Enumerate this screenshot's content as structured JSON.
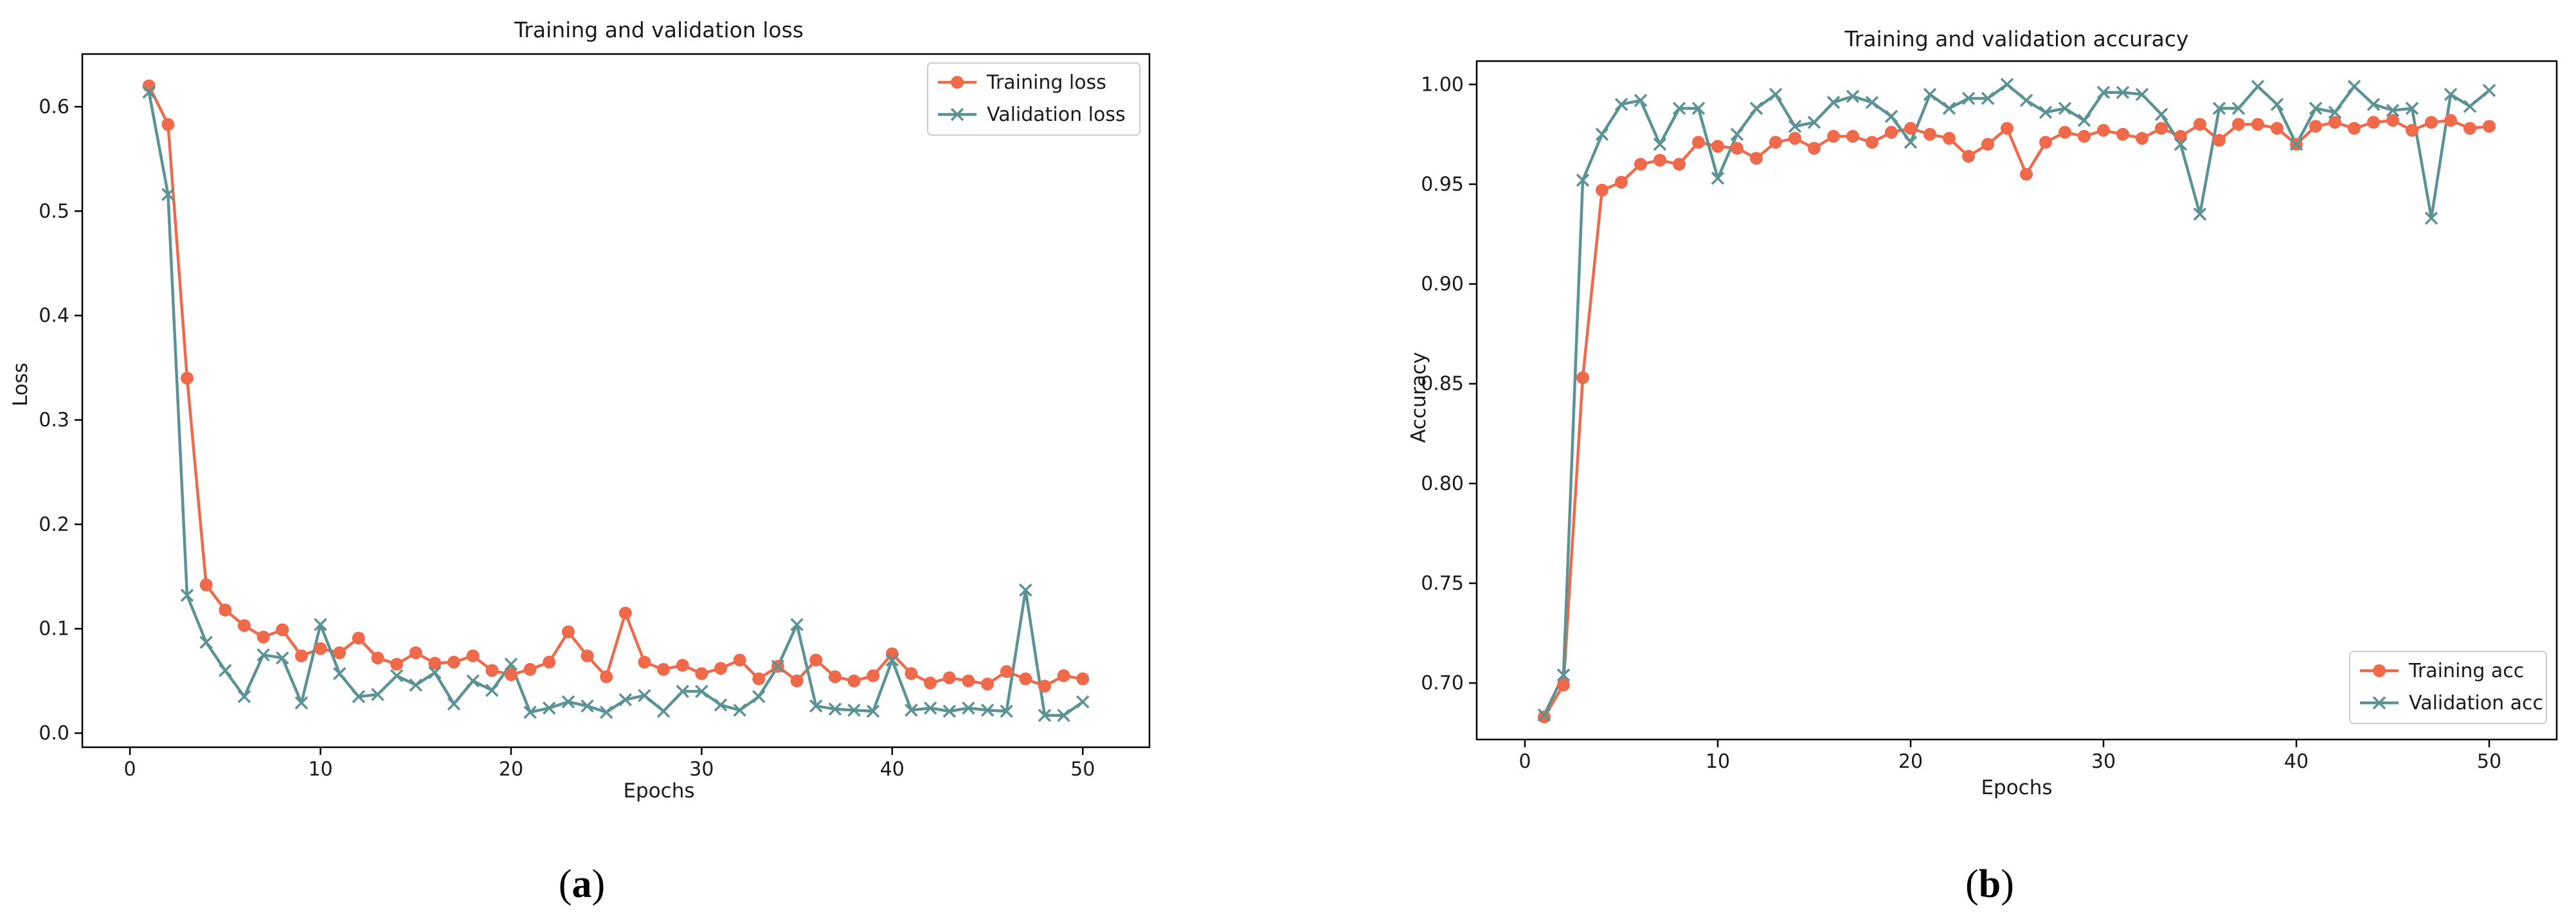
{
  "colors": {
    "train": "#EE6A4B",
    "validation": "#5B9293",
    "axis": "#000000",
    "background": "#ffffff"
  },
  "chart_data": [
    {
      "type": "line",
      "title": "Training and validation loss",
      "xlabel": "Epochs",
      "ylabel": "Loss",
      "xlim": [
        -2.5,
        53.5
      ],
      "ylim": [
        -0.0135,
        0.6505
      ],
      "xticks": [
        0,
        10,
        20,
        30,
        40,
        50
      ],
      "xtick_labels": [
        "0",
        "10",
        "20",
        "30",
        "40",
        "50"
      ],
      "yticks": [
        0.0,
        0.1,
        0.2,
        0.3,
        0.4,
        0.5,
        0.6
      ],
      "ytick_labels": [
        "0.0",
        "0.1",
        "0.2",
        "0.3",
        "0.4",
        "0.5",
        "0.6"
      ],
      "legend_position": "top-right",
      "grid": false,
      "x": [
        1,
        2,
        3,
        4,
        5,
        6,
        7,
        8,
        9,
        10,
        11,
        12,
        13,
        14,
        15,
        16,
        17,
        18,
        19,
        20,
        21,
        22,
        23,
        24,
        25,
        26,
        27,
        28,
        29,
        30,
        31,
        32,
        33,
        34,
        35,
        36,
        37,
        38,
        39,
        40,
        41,
        42,
        43,
        44,
        45,
        46,
        47,
        48,
        49,
        50
      ],
      "series": [
        {
          "name": "Training loss",
          "marker": "circle",
          "values": [
            0.62,
            0.583,
            0.34,
            0.142,
            0.118,
            0.103,
            0.092,
            0.099,
            0.074,
            0.081,
            0.077,
            0.091,
            0.072,
            0.066,
            0.077,
            0.067,
            0.068,
            0.074,
            0.06,
            0.056,
            0.061,
            0.068,
            0.097,
            0.074,
            0.054,
            0.115,
            0.068,
            0.061,
            0.065,
            0.057,
            0.062,
            0.07,
            0.052,
            0.064,
            0.05,
            0.07,
            0.054,
            0.05,
            0.055,
            0.076,
            0.057,
            0.048,
            0.053,
            0.05,
            0.047,
            0.059,
            0.052,
            0.045,
            0.055,
            0.052
          ]
        },
        {
          "name": "Validation loss",
          "marker": "x",
          "values": [
            0.614,
            0.516,
            0.132,
            0.087,
            0.06,
            0.035,
            0.075,
            0.072,
            0.029,
            0.104,
            0.057,
            0.035,
            0.037,
            0.055,
            0.046,
            0.058,
            0.028,
            0.05,
            0.041,
            0.066,
            0.02,
            0.024,
            0.03,
            0.026,
            0.02,
            0.032,
            0.036,
            0.021,
            0.04,
            0.04,
            0.027,
            0.022,
            0.035,
            0.064,
            0.104,
            0.026,
            0.023,
            0.022,
            0.021,
            0.07,
            0.022,
            0.024,
            0.021,
            0.024,
            0.022,
            0.021,
            0.137,
            0.017,
            0.017,
            0.03
          ]
        }
      ]
    },
    {
      "type": "line",
      "title": "Training and validation accuracy",
      "xlabel": "Epochs",
      "ylabel": "Accuracy",
      "xlim": [
        -2.5,
        53.5
      ],
      "ylim": [
        0.6717,
        1.0117
      ],
      "xticks": [
        0,
        10,
        20,
        30,
        40,
        50
      ],
      "xtick_labels": [
        "0",
        "10",
        "20",
        "30",
        "40",
        "50"
      ],
      "yticks": [
        0.7,
        0.75,
        0.8,
        0.85,
        0.9,
        0.95,
        1.0
      ],
      "ytick_labels": [
        "0.70",
        "0.75",
        "0.80",
        "0.85",
        "0.90",
        "0.95",
        "1.00"
      ],
      "legend_position": "bottom-right",
      "grid": false,
      "x": [
        1,
        2,
        3,
        4,
        5,
        6,
        7,
        8,
        9,
        10,
        11,
        12,
        13,
        14,
        15,
        16,
        17,
        18,
        19,
        20,
        21,
        22,
        23,
        24,
        25,
        26,
        27,
        28,
        29,
        30,
        31,
        32,
        33,
        34,
        35,
        36,
        37,
        38,
        39,
        40,
        41,
        42,
        43,
        44,
        45,
        46,
        47,
        48,
        49,
        50
      ],
      "series": [
        {
          "name": "Training acc",
          "marker": "circle",
          "values": [
            0.683,
            0.699,
            0.853,
            0.947,
            0.951,
            0.96,
            0.962,
            0.96,
            0.971,
            0.969,
            0.968,
            0.963,
            0.971,
            0.973,
            0.968,
            0.974,
            0.974,
            0.971,
            0.976,
            0.978,
            0.975,
            0.973,
            0.964,
            0.97,
            0.978,
            0.955,
            0.971,
            0.976,
            0.974,
            0.977,
            0.975,
            0.973,
            0.978,
            0.974,
            0.98,
            0.972,
            0.98,
            0.98,
            0.978,
            0.97,
            0.979,
            0.981,
            0.978,
            0.981,
            0.982,
            0.977,
            0.981,
            0.982,
            0.978,
            0.979
          ]
        },
        {
          "name": "Validation acc",
          "marker": "x",
          "values": [
            0.684,
            0.704,
            0.952,
            0.975,
            0.99,
            0.992,
            0.97,
            0.988,
            0.988,
            0.953,
            0.975,
            0.988,
            0.995,
            0.979,
            0.981,
            0.991,
            0.994,
            0.991,
            0.984,
            0.971,
            0.995,
            0.988,
            0.993,
            0.993,
            1.0,
            0.992,
            0.986,
            0.988,
            0.982,
            0.996,
            0.996,
            0.995,
            0.985,
            0.97,
            0.935,
            0.988,
            0.988,
            0.999,
            0.99,
            0.97,
            0.988,
            0.986,
            0.999,
            0.99,
            0.987,
            0.988,
            0.933,
            0.995,
            0.989,
            0.997
          ]
        }
      ]
    }
  ],
  "captions": [
    {
      "open": "(",
      "letter": "a",
      "close": ")"
    },
    {
      "open": "(",
      "letter": "b",
      "close": ")"
    }
  ]
}
